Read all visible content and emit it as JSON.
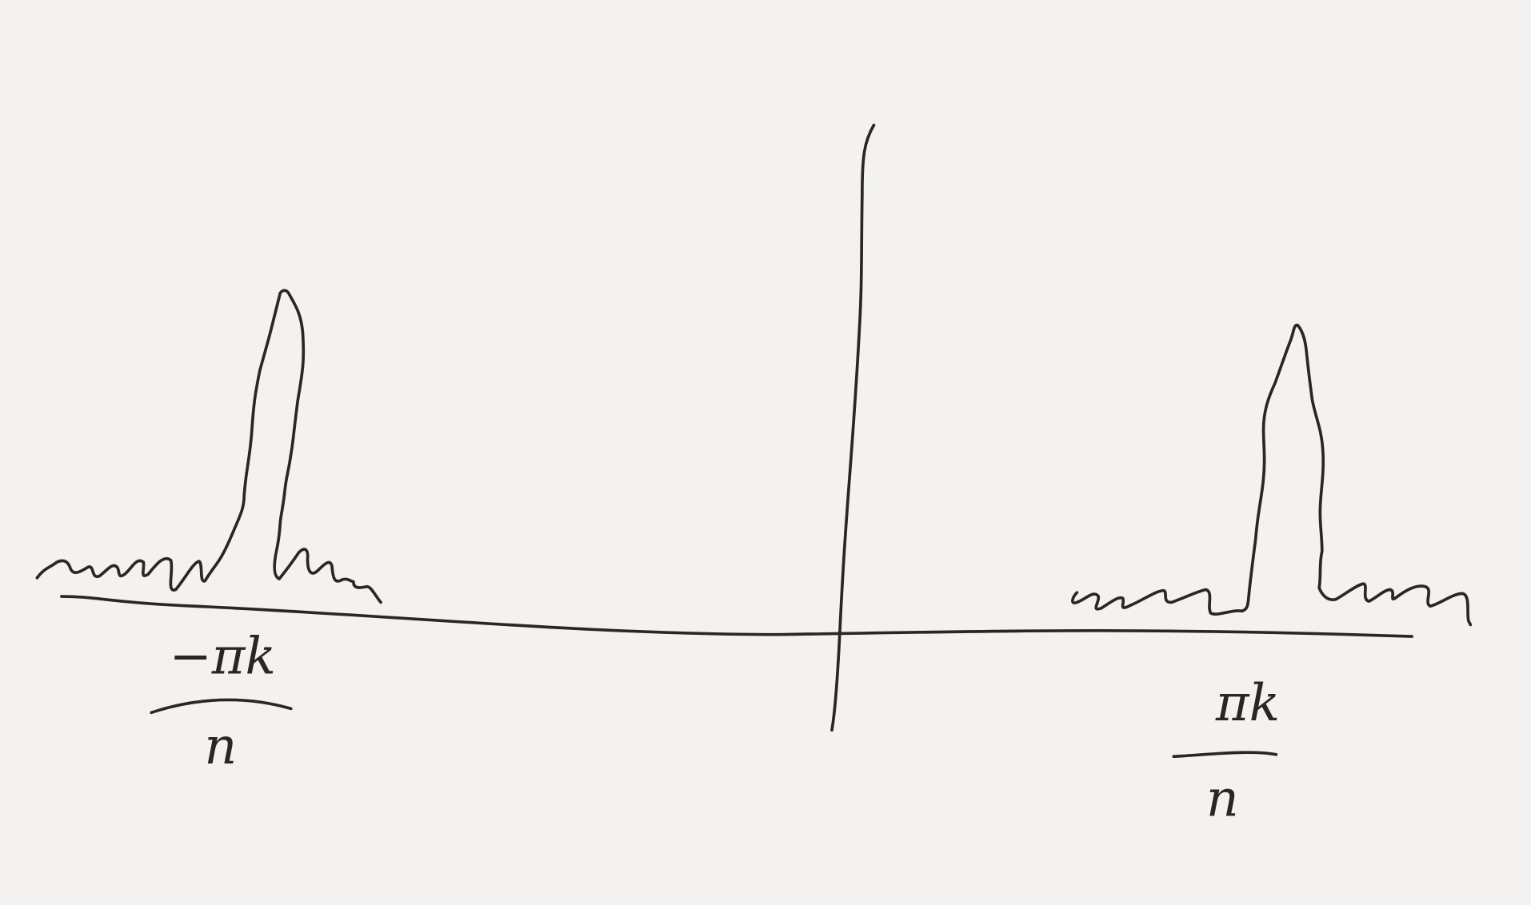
{
  "labels": [
    {
      "numerator": "−πk",
      "denominator": "n"
    },
    {
      "numerator": "πk",
      "denominator": "n"
    }
  ]
}
